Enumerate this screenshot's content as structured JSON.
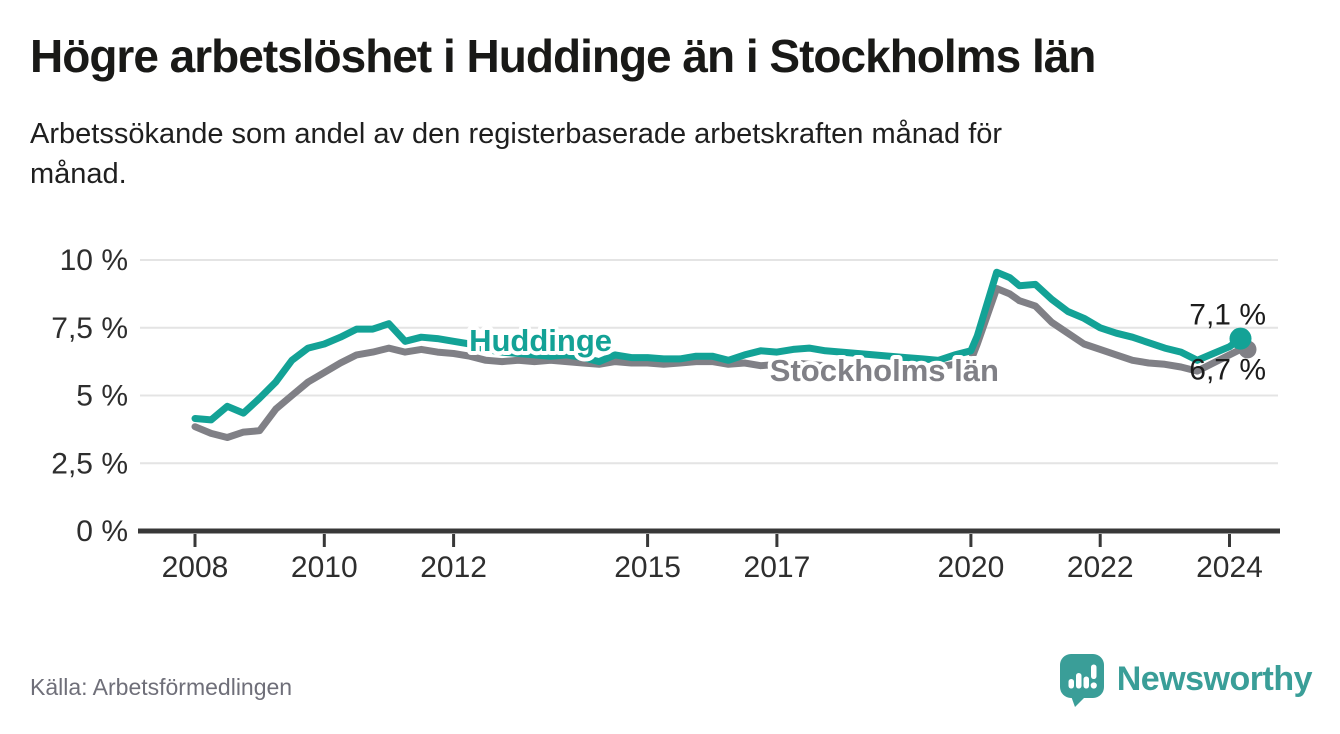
{
  "header": {
    "title": "Högre arbetslöshet i Huddinge än i Stockholms län",
    "subtitle_line1": "Arbetssökande som andel av den registerbaserade arbetskraften månad för",
    "subtitle_line2": "månad."
  },
  "footer": {
    "source": "Källa: Arbetsförmedlingen",
    "brand": "Newsworthy"
  },
  "colors": {
    "huddinge": "#13a296",
    "stockholm": "#808086",
    "grid": "#e4e4e4",
    "axis": "#383838",
    "tick_text": "#2e2e2e",
    "annotation_text": "#1c1c1c",
    "brand": "#3a9e98"
  },
  "chart_data": {
    "type": "line",
    "title": "Högre arbetslöshet i Huddinge än i Stockholms län",
    "xlabel": "",
    "ylabel": "%",
    "grid": true,
    "legend_position": "inline",
    "xlim": [
      2007.15,
      2024.75
    ],
    "ylim": [
      0,
      10
    ],
    "x_ticks": {
      "values": [
        2008,
        2010,
        2012,
        2015,
        2017,
        2020,
        2022,
        2024
      ],
      "labels": [
        "2008",
        "2010",
        "2012",
        "2015",
        "2017",
        "2020",
        "2022",
        "2024"
      ]
    },
    "y_ticks": {
      "values": [
        0,
        2.5,
        5,
        7.5,
        10
      ],
      "labels": [
        "0 %",
        "2,5 %",
        "5 %",
        "7,5 %",
        "10 %"
      ]
    },
    "x": [
      2008.0,
      2008.25,
      2008.5,
      2008.75,
      2009.0,
      2009.25,
      2009.5,
      2009.75,
      2010.0,
      2010.25,
      2010.5,
      2010.75,
      2011.0,
      2011.25,
      2011.5,
      2011.75,
      2012.0,
      2012.25,
      2012.5,
      2012.75,
      2013.0,
      2013.25,
      2013.5,
      2013.75,
      2014.0,
      2014.25,
      2014.5,
      2014.75,
      2015.0,
      2015.25,
      2015.5,
      2015.75,
      2016.0,
      2016.25,
      2016.5,
      2016.75,
      2017.0,
      2017.25,
      2017.5,
      2017.75,
      2018.0,
      2018.25,
      2018.5,
      2018.75,
      2019.0,
      2019.25,
      2019.5,
      2019.75,
      2020.0,
      2020.1,
      2020.4,
      2020.6,
      2020.75,
      2021.0,
      2021.25,
      2021.5,
      2021.75,
      2022.0,
      2022.25,
      2022.5,
      2022.75,
      2023.0,
      2023.25,
      2023.5,
      2023.75,
      2024.0,
      2024.17
    ],
    "series": [
      {
        "name": "Huddinge",
        "color": "#13a296",
        "end_label": "7,1 %",
        "latest_value": 7.1,
        "label_pos": {
          "x": 2012.24,
          "y": 6.64
        },
        "values": [
          4.15,
          4.1,
          4.6,
          4.35,
          4.9,
          5.5,
          6.3,
          6.75,
          6.9,
          7.15,
          7.45,
          7.45,
          7.65,
          7.0,
          7.15,
          7.1,
          7.0,
          6.9,
          6.7,
          6.6,
          6.55,
          6.5,
          6.45,
          6.5,
          6.4,
          6.25,
          6.5,
          6.4,
          6.4,
          6.35,
          6.35,
          6.45,
          6.45,
          6.3,
          6.5,
          6.65,
          6.6,
          6.7,
          6.75,
          6.65,
          6.6,
          6.55,
          6.5,
          6.45,
          6.4,
          6.35,
          6.3,
          6.5,
          6.65,
          7.2,
          9.55,
          9.35,
          9.05,
          9.1,
          8.55,
          8.1,
          7.85,
          7.5,
          7.3,
          7.15,
          6.95,
          6.75,
          6.6,
          6.3,
          6.55,
          6.8,
          7.1
        ]
      },
      {
        "name": "Stockholms län",
        "color": "#808086",
        "end_label": "6,7 %",
        "latest_value": 6.7,
        "label_pos": {
          "x": 2016.89,
          "y": 5.53
        },
        "values": [
          3.85,
          3.6,
          3.45,
          3.65,
          3.7,
          4.5,
          5.0,
          5.5,
          5.85,
          6.2,
          6.5,
          6.6,
          6.75,
          6.6,
          6.7,
          6.6,
          6.55,
          6.45,
          6.3,
          6.25,
          6.3,
          6.25,
          6.3,
          6.25,
          6.2,
          6.15,
          6.25,
          6.2,
          6.2,
          6.15,
          6.2,
          6.25,
          6.25,
          6.15,
          6.2,
          6.1,
          6.15,
          6.2,
          6.15,
          6.1,
          6.1,
          6.05,
          6.0,
          6.0,
          6.0,
          6.0,
          6.05,
          6.15,
          6.3,
          6.9,
          8.95,
          8.75,
          8.5,
          8.3,
          7.7,
          7.3,
          6.9,
          6.7,
          6.5,
          6.3,
          6.2,
          6.15,
          6.05,
          5.9,
          6.2,
          6.5,
          6.7
        ]
      }
    ]
  }
}
